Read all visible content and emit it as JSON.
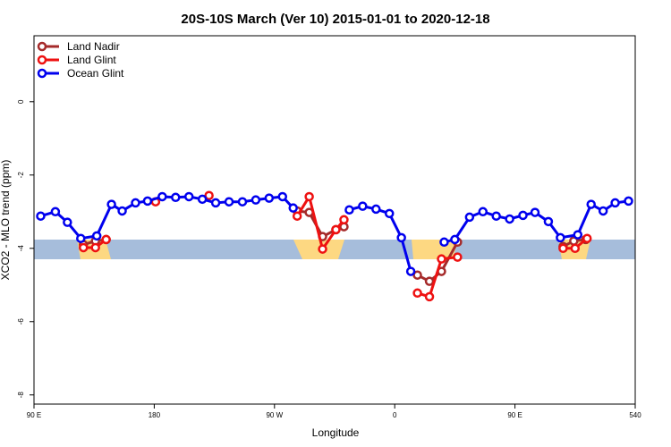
{
  "chart_data": {
    "type": "line",
    "title": "20S-10S March (Ver 10)   2015-01-01 to 2020-12-18",
    "x_label": "Longitude",
    "y_label": "XCO2 - MLO trend (ppm)",
    "xlim": [
      90,
      540
    ],
    "xticks": [
      {
        "value": 90,
        "label": "90 E"
      },
      180,
      {
        "value": 270,
        "label": "90 W"
      },
      {
        "value": 360,
        "label": "0"
      },
      {
        "value": 450,
        "label": "90 E"
      },
      540
    ],
    "ylim": [
      -8.25,
      1.8
    ],
    "yticks": [
      0,
      -2,
      -4,
      -6,
      -8
    ],
    "legend": "top-left",
    "series": [
      {
        "name": "Land Nadir",
        "color": "#a52a2a",
        "x": [
          127,
          136,
          144,
          null,
          287,
          296,
          306,
          316,
          322,
          null,
          377,
          386,
          395,
          407,
          null,
          486,
          494,
          503
        ],
        "values": [
          -3.9,
          -3.8,
          -3.76,
          null,
          -2.98,
          -3.02,
          -3.68,
          -3.49,
          -3.41,
          null,
          -4.73,
          -4.9,
          -4.63,
          -3.83,
          null,
          -3.95,
          -3.8,
          -3.76
        ]
      },
      {
        "name": "Land Glint",
        "color": "#ee1111",
        "x": [
          127,
          136,
          144,
          null,
          181,
          null,
          221,
          null,
          287,
          296,
          306,
          316,
          322,
          null,
          377,
          386,
          395,
          407,
          null,
          486,
          495,
          504
        ],
        "values": [
          -3.98,
          -3.98,
          -3.76,
          null,
          -2.73,
          null,
          -2.56,
          null,
          -3.12,
          -2.59,
          -4.02,
          -3.49,
          -3.22,
          null,
          -5.22,
          -5.32,
          -4.29,
          -4.24,
          null,
          -4.0,
          -4.0,
          -3.73
        ]
      },
      {
        "name": "Ocean Glint",
        "color": "#0000ee",
        "x": [
          95,
          106,
          115,
          125,
          137,
          148,
          156,
          166,
          175,
          186,
          196,
          206,
          216,
          226,
          236,
          246,
          256,
          266,
          276,
          284,
          null,
          326,
          336,
          346,
          356,
          365,
          372,
          null,
          397,
          405,
          416,
          426,
          436,
          446,
          456,
          465,
          475,
          484,
          497,
          507,
          516,
          525,
          535
        ],
        "values": [
          -3.12,
          -3.0,
          -3.29,
          -3.73,
          -3.66,
          -2.8,
          -2.98,
          -2.76,
          -2.71,
          -2.59,
          -2.61,
          -2.59,
          -2.66,
          -2.76,
          -2.73,
          -2.73,
          -2.68,
          -2.63,
          -2.59,
          -2.9,
          null,
          -2.95,
          -2.85,
          -2.93,
          -3.05,
          -3.71,
          -4.63,
          null,
          -3.83,
          -3.76,
          -3.15,
          -3.0,
          -3.12,
          -3.2,
          -3.1,
          -3.02,
          -3.27,
          -3.71,
          -3.63,
          -2.8,
          -2.98,
          -2.76,
          -2.71
        ]
      }
    ]
  }
}
